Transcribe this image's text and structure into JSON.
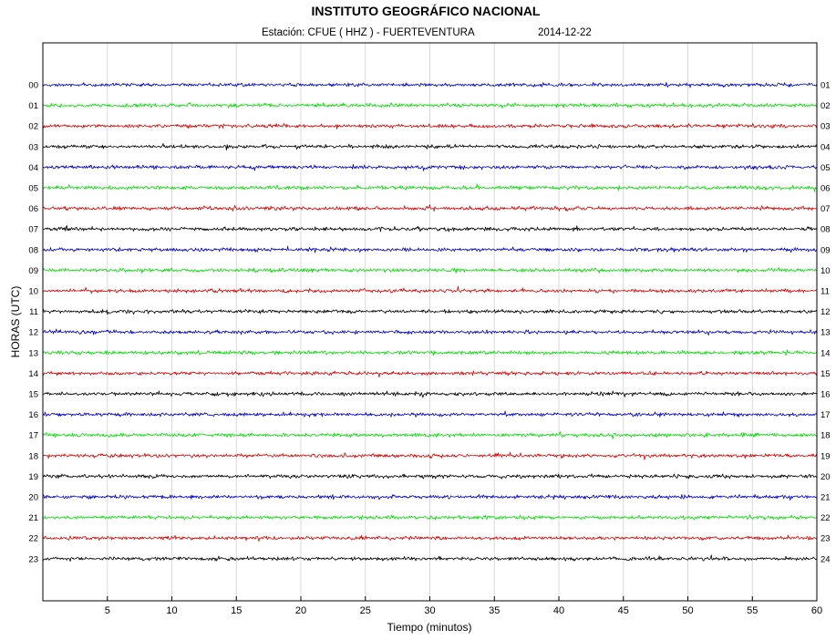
{
  "chart_data": {
    "type": "line",
    "title": "INSTITUTO GEOGRÁFICO NACIONAL",
    "subtitle": {
      "station": "Estación:  CFUE ( HHZ ) - FUERTEVENTURA",
      "date": "2014-12-22"
    },
    "xlabel": "Tiempo (minutos)",
    "ylabel": "HORAS (UTC)",
    "xlim": [
      0,
      60
    ],
    "x_ticks": [
      "5",
      "10",
      "15",
      "20",
      "25",
      "30",
      "35",
      "40",
      "45",
      "50",
      "55",
      "60"
    ],
    "grid": true,
    "left_hour_labels": [
      "00",
      "01",
      "02",
      "03",
      "04",
      "05",
      "06",
      "07",
      "08",
      "09",
      "10",
      "11",
      "12",
      "13",
      "14",
      "15",
      "16",
      "17",
      "18",
      "19",
      "20",
      "21",
      "22",
      "23"
    ],
    "right_hour_labels": [
      "01",
      "02",
      "03",
      "04",
      "05",
      "06",
      "07",
      "08",
      "09",
      "10",
      "11",
      "12",
      "13",
      "14",
      "15",
      "16",
      "17",
      "18",
      "19",
      "20",
      "21",
      "22",
      "23",
      "24"
    ],
    "trace_colors": [
      "#0000cc",
      "#00e000",
      "#dd0000",
      "#000000"
    ]
  }
}
